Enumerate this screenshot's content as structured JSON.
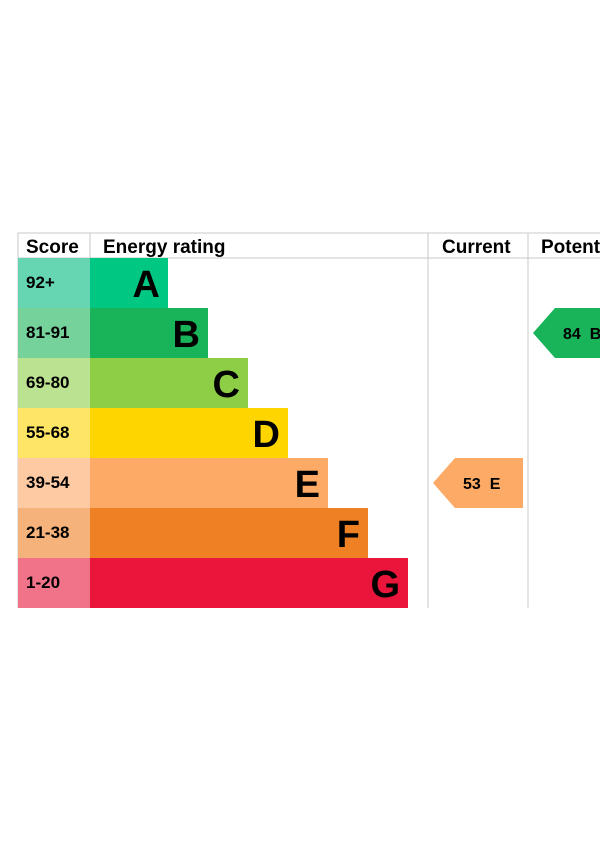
{
  "chart_data": {
    "type": "bar",
    "headers": {
      "score": "Score",
      "energy_rating": "Energy rating",
      "current": "Current",
      "potential": "Potential"
    },
    "bands": [
      {
        "letter": "A",
        "range": "92+",
        "color": "#00c781",
        "score_bg": "#66d5b1"
      },
      {
        "letter": "B",
        "range": "81-91",
        "color": "#19b459",
        "score_bg": "#75d29b"
      },
      {
        "letter": "C",
        "range": "69-80",
        "color": "#8dce46",
        "score_bg": "#bbe290"
      },
      {
        "letter": "D",
        "range": "55-68",
        "color": "#ffd500",
        "score_bg": "#ffe566"
      },
      {
        "letter": "E",
        "range": "39-54",
        "color": "#fcaa65",
        "score_bg": "#fdcaa3"
      },
      {
        "letter": "F",
        "range": "21-38",
        "color": "#ef8023",
        "score_bg": "#f5b37b"
      },
      {
        "letter": "G",
        "range": "1-20",
        "color": "#e9153b",
        "score_bg": "#f07389"
      }
    ],
    "current": {
      "value": 53,
      "band": "E",
      "label": "53  E",
      "color": "#fcaa65"
    },
    "potential": {
      "value": 84,
      "band": "B",
      "label": "84  B",
      "color": "#19b459"
    }
  }
}
